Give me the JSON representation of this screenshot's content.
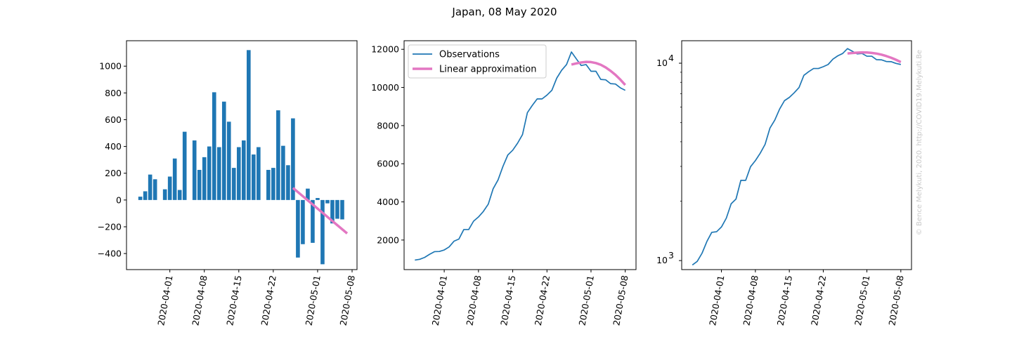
{
  "figure": {
    "title": "Japan, 08 May 2020",
    "watermark": "© Bence Melykuti, 2020. http://COVID19.Melykuti.Be"
  },
  "colors": {
    "observations": "#1f77b4",
    "approximation": "#e377c2"
  },
  "chart_data": [
    {
      "type": "bar",
      "title": "",
      "xlabel": "",
      "ylabel": "",
      "x_start": "2020-03-26",
      "x_ticks": [
        "2020-04-01",
        "2020-04-08",
        "2020-04-15",
        "2020-04-22",
        "2020-05-01",
        "2020-05-08"
      ],
      "ylim": [
        -520,
        1190
      ],
      "y_ticks": [
        "1000",
        "800",
        "600",
        "400",
        "200",
        "0",
        "−200",
        "−400"
      ],
      "series": [
        {
          "values": [
            25,
            65,
            190,
            155,
            0,
            80,
            175,
            310,
            75,
            510,
            0,
            445,
            225,
            320,
            400,
            805,
            395,
            735,
            585,
            240,
            395,
            445,
            1120,
            340,
            395,
            0,
            225,
            240,
            670,
            405,
            260,
            610,
            -430,
            -330,
            85,
            -320,
            15,
            -480,
            -25,
            -175,
            -140,
            -145
          ]
        },
        {
          "start_index": 31,
          "values": [
            90,
            -250
          ]
        }
      ]
    },
    {
      "type": "line",
      "title": "",
      "xlabel": "",
      "ylabel": "",
      "x_start": "2020-03-26",
      "x_ticks": [
        "2020-04-01",
        "2020-04-08",
        "2020-04-15",
        "2020-04-22",
        "2020-05-01",
        "2020-05-08"
      ],
      "ylim": [
        450,
        12450
      ],
      "y_ticks": [
        "12000",
        "10000",
        "8000",
        "6000",
        "4000",
        "2000"
      ],
      "legend": {
        "location": "upper left",
        "entries": [
          "Observations",
          "Linear approximation"
        ]
      },
      "series": [
        {
          "name": "Observations",
          "values": [
            950,
            990,
            1090,
            1250,
            1390,
            1400,
            1480,
            1640,
            1940,
            2050,
            2550,
            2550,
            2990,
            3210,
            3500,
            3880,
            4690,
            5150,
            5860,
            6460,
            6710,
            7080,
            7530,
            8680,
            9060,
            9400,
            9400,
            9600,
            9850,
            10490,
            10900,
            11200,
            11860,
            11500,
            11150,
            11200,
            10850,
            10850,
            10420,
            10400,
            10200,
            10180,
            9980,
            9850
          ]
        },
        {
          "name": "Linear approximation",
          "start_index": 32,
          "values": [
            11200,
            11260,
            11310,
            11340,
            11330,
            11280,
            11190,
            11050,
            10870,
            10660,
            10410,
            10130
          ]
        }
      ]
    },
    {
      "type": "line",
      "title": "",
      "xlabel": "",
      "ylabel": "",
      "yscale": "log",
      "x_start": "2020-03-26",
      "x_ticks": [
        "2020-04-01",
        "2020-04-08",
        "2020-04-15",
        "2020-04-22",
        "2020-05-01",
        "2020-05-08"
      ],
      "ylim": [
        900,
        13000
      ],
      "y_ticks": [
        "10",
        "10"
      ],
      "y_tick_exponents": [
        "4",
        "3"
      ],
      "series": [
        {
          "name": "Observations",
          "values": [
            950,
            990,
            1090,
            1250,
            1390,
            1400,
            1480,
            1640,
            1940,
            2050,
            2550,
            2550,
            2990,
            3210,
            3500,
            3880,
            4690,
            5150,
            5860,
            6460,
            6710,
            7080,
            7530,
            8680,
            9060,
            9400,
            9400,
            9600,
            9850,
            10490,
            10900,
            11200,
            11860,
            11500,
            11150,
            11200,
            10850,
            10850,
            10420,
            10400,
            10200,
            10180,
            9980,
            9850
          ]
        },
        {
          "name": "Linear approximation",
          "start_index": 32,
          "values": [
            11200,
            11260,
            11310,
            11340,
            11330,
            11280,
            11190,
            11050,
            10870,
            10660,
            10410,
            10130
          ]
        }
      ]
    }
  ]
}
